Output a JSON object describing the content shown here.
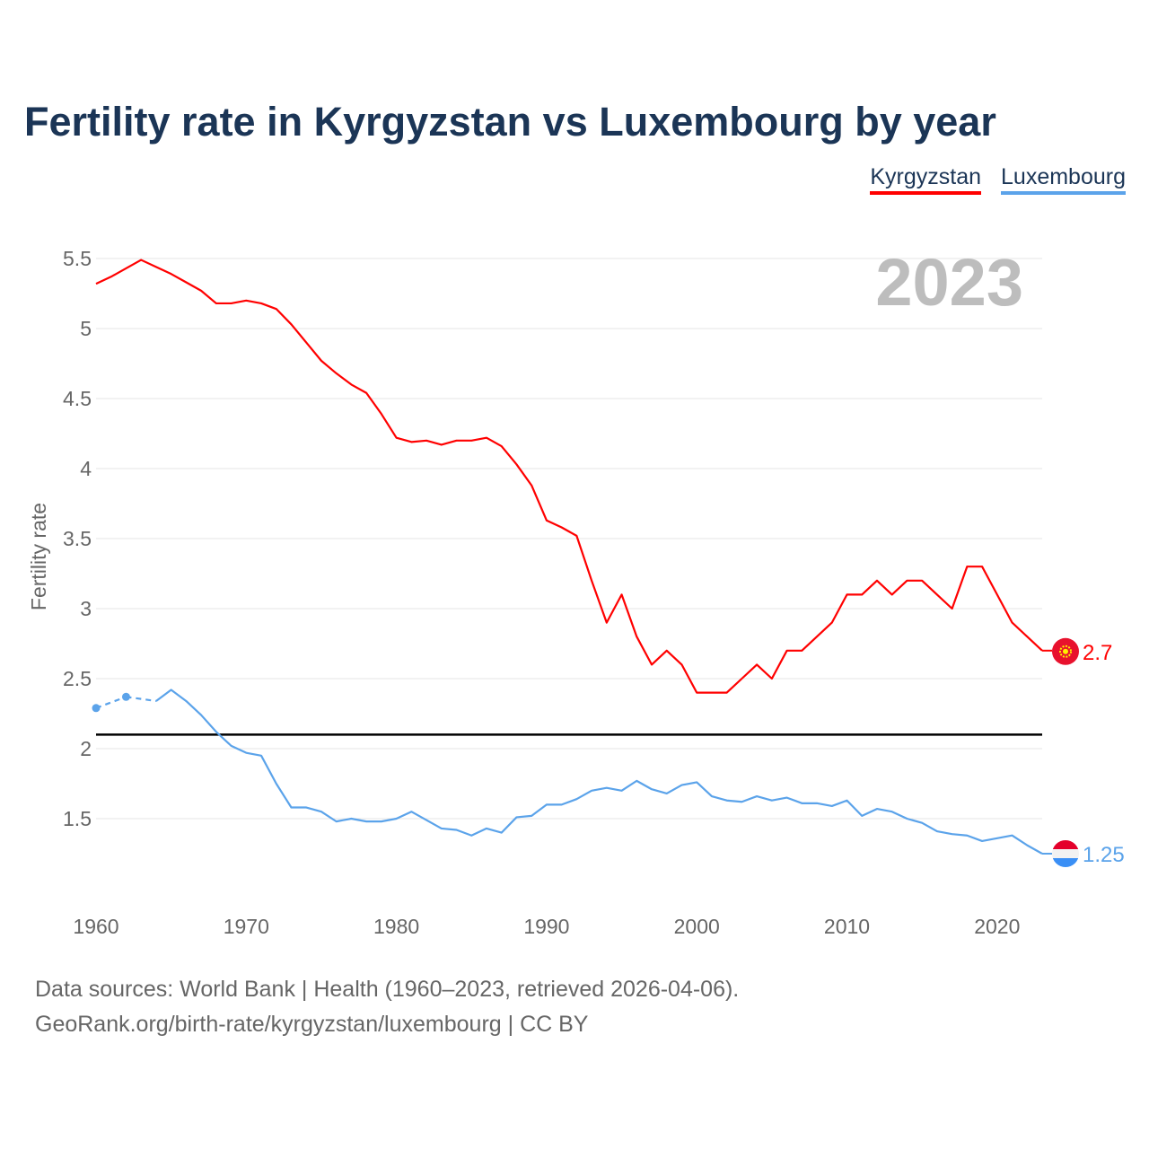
{
  "title": "Fertility rate in Kyrgyzstan vs Luxembourg by year",
  "legend": [
    "Kyrgyzstan",
    "Luxembourg"
  ],
  "year_label": "2023",
  "footer": {
    "line1": "Data sources: World Bank | Health (1960–2023, retrieved 2026-04-06).",
    "line2": "GeoRank.org/birth-rate/kyrgyzstan/luxembourg | CC BY"
  },
  "chart_data": {
    "type": "line",
    "title": "Fertility rate in Kyrgyzstan vs Luxembourg by year",
    "ylabel": "Fertility rate",
    "xlabel": "",
    "ylim": [
      1.0,
      5.6
    ],
    "xlim": [
      1960,
      2023
    ],
    "yticks": [
      "1.5",
      "2",
      "2.5",
      "3",
      "3.5",
      "4",
      "4.5",
      "5",
      "5.5"
    ],
    "xticks": [
      "1960",
      "1970",
      "1980",
      "1990",
      "2000",
      "2010",
      "2020"
    ],
    "reference_line": 2.1,
    "grid": true,
    "legend_position": "top-right",
    "x_start": 1960,
    "series": [
      {
        "name": "Kyrgyzstan",
        "color": "#ff0000",
        "end_label": "2.7",
        "values": [
          5.32,
          5.37,
          5.43,
          5.49,
          5.44,
          5.39,
          5.33,
          5.27,
          5.18,
          5.18,
          5.2,
          5.18,
          5.14,
          5.03,
          4.9,
          4.77,
          4.68,
          4.6,
          4.54,
          4.39,
          4.22,
          4.19,
          4.2,
          4.17,
          4.2,
          4.2,
          4.22,
          4.16,
          4.03,
          3.88,
          3.63,
          3.58,
          3.52,
          3.2,
          2.9,
          3.1,
          2.8,
          2.6,
          2.7,
          2.6,
          2.4,
          2.4,
          2.4,
          2.5,
          2.6,
          2.5,
          2.7,
          2.7,
          2.8,
          2.9,
          3.1,
          3.1,
          3.2,
          3.1,
          3.2,
          3.2,
          3.1,
          3.0,
          3.3,
          3.3,
          3.1,
          2.9,
          2.8,
          2.7
        ]
      },
      {
        "name": "Luxembourg",
        "color": "#5ba3ea",
        "end_label": "1.25",
        "values": [
          2.29,
          null,
          2.37,
          null,
          2.34,
          2.42,
          2.34,
          2.24,
          2.12,
          2.02,
          1.97,
          1.95,
          1.75,
          1.58,
          1.58,
          1.55,
          1.48,
          1.5,
          1.48,
          1.48,
          1.5,
          1.55,
          1.49,
          1.43,
          1.42,
          1.38,
          1.43,
          1.4,
          1.51,
          1.52,
          1.6,
          1.6,
          1.64,
          1.7,
          1.72,
          1.7,
          1.77,
          1.71,
          1.68,
          1.74,
          1.76,
          1.66,
          1.63,
          1.62,
          1.66,
          1.63,
          1.65,
          1.61,
          1.61,
          1.59,
          1.63,
          1.52,
          1.57,
          1.55,
          1.5,
          1.47,
          1.41,
          1.39,
          1.38,
          1.34,
          1.36,
          1.38,
          1.31,
          1.25
        ]
      }
    ]
  }
}
